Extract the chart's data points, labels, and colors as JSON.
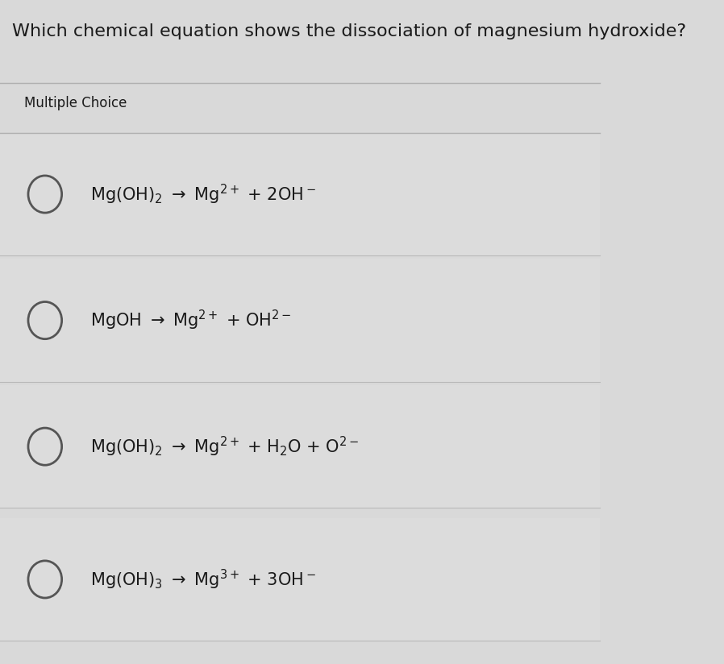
{
  "title": "Which chemical equation shows the dissociation of magnesium hydroxide?",
  "subtitle": "Multiple Choice",
  "background_color": "#d9d9d9",
  "title_color": "#1a1a1a",
  "subtitle_color": "#1a1a1a",
  "options": [
    "Mg(OH)$_2$ $\\rightarrow$ Mg$^{2+}$ + 2OH$^-$",
    "MgOH $\\rightarrow$ Mg$^{2+}$ + OH$^{2-}$",
    "Mg(OH)$_2$ $\\rightarrow$ Mg$^{2+}$ + H$_2$O + O$^{2-}$",
    "Mg(OH)$_3$ $\\rightarrow$ Mg$^{3+}$ + 3OH$^-$"
  ],
  "circle_color": "#555555",
  "figsize": [
    8.98,
    8.24
  ],
  "dpi": 100
}
